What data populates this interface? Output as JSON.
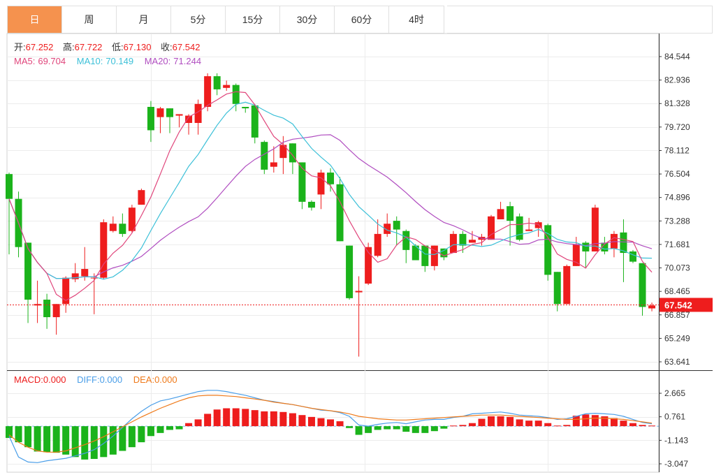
{
  "tabs": [
    {
      "label": "日",
      "active": true
    },
    {
      "label": "周",
      "active": false
    },
    {
      "label": "月",
      "active": false
    },
    {
      "label": "5分",
      "active": false
    },
    {
      "label": "15分",
      "active": false
    },
    {
      "label": "30分",
      "active": false
    },
    {
      "label": "60分",
      "active": false
    },
    {
      "label": "4时",
      "active": false
    }
  ],
  "info": {
    "open_label": "开:",
    "open": "67.252",
    "high_label": "高:",
    "high": "67.722",
    "low_label": "低:",
    "low": "67.130",
    "close_label": "收:",
    "close": "67.542",
    "ma5_label": "MA5:",
    "ma5": "69.704",
    "ma10_label": "MA10:",
    "ma10": "70.149",
    "ma20_label": "MA20:",
    "ma20": "71.244"
  },
  "macd_info": {
    "macd_label": "MACD:",
    "macd": "0.000",
    "diff_label": "DIFF:",
    "diff": "0.000",
    "dea_label": "DEA:",
    "dea": "0.000"
  },
  "colors": {
    "up": "#ee1d1d",
    "down": "#1bb31b",
    "ma5": "#e0457b",
    "ma10": "#3cc0d8",
    "ma20": "#b04dc0",
    "diff": "#4a9ee8",
    "dea": "#ef7a1a",
    "grid": "#ececec",
    "price_line": "#ee1d1d"
  },
  "chart_data": {
    "type": "candlestick",
    "price_axis": {
      "ticks": [
        "84.544",
        "82.936",
        "81.328",
        "79.720",
        "78.112",
        "76.504",
        "74.896",
        "73.288",
        "71.681",
        "70.073",
        "68.465",
        "66.857",
        "65.249",
        "63.641"
      ],
      "current": "67.542"
    },
    "macd_axis": {
      "ticks": [
        "2.665",
        "0.761",
        "-1.143",
        "-3.047"
      ]
    },
    "candles": [
      [
        76.5,
        74.8,
        76.6,
        71.0
      ],
      [
        74.8,
        71.5,
        75.3,
        70.8
      ],
      [
        71.8,
        67.9,
        71.8,
        66.3
      ],
      [
        67.5,
        67.6,
        69.2,
        66.3
      ],
      [
        67.9,
        66.7,
        68.3,
        65.9
      ],
      [
        66.7,
        67.6,
        67.6,
        65.5
      ],
      [
        67.6,
        69.4,
        69.5,
        67.0
      ],
      [
        69.3,
        69.7,
        70.4,
        69.1
      ],
      [
        69.5,
        70.0,
        71.5,
        69.2
      ],
      [
        69.4,
        69.4,
        69.7,
        66.9
      ],
      [
        69.4,
        73.2,
        73.4,
        69.3
      ],
      [
        72.6,
        73.1,
        73.6,
        72.5
      ],
      [
        73.1,
        72.4,
        73.8,
        72.2
      ],
      [
        72.6,
        74.2,
        74.4,
        72.5
      ],
      [
        74.4,
        75.4,
        75.5,
        74.4
      ],
      [
        81.1,
        79.5,
        81.5,
        78.7
      ],
      [
        80.4,
        81.0,
        81.1,
        79.3
      ],
      [
        81.0,
        80.4,
        81.0,
        79.3
      ],
      [
        80.5,
        80.6,
        80.6,
        79.7
      ],
      [
        80.0,
        80.5,
        80.6,
        79.2
      ],
      [
        80.0,
        81.3,
        81.6,
        79.2
      ],
      [
        81.1,
        83.2,
        83.4,
        80.8
      ],
      [
        83.2,
        82.3,
        83.4,
        81.9
      ],
      [
        82.4,
        82.6,
        82.9,
        82.2
      ],
      [
        82.6,
        81.3,
        82.7,
        80.8
      ],
      [
        81.1,
        81.0,
        81.1,
        80.7
      ],
      [
        81.2,
        79.0,
        81.3,
        78.6
      ],
      [
        78.7,
        76.8,
        78.8,
        76.5
      ],
      [
        77.0,
        77.3,
        78.4,
        76.6
      ],
      [
        77.6,
        78.5,
        79.1,
        76.5
      ],
      [
        78.6,
        77.3,
        78.6,
        76.5
      ],
      [
        77.3,
        74.6,
        77.3,
        74.1
      ],
      [
        74.6,
        74.2,
        74.7,
        74.0
      ],
      [
        75.1,
        76.6,
        76.8,
        74.1
      ],
      [
        76.6,
        75.8,
        76.9,
        75.3
      ],
      [
        75.8,
        71.9,
        76.3,
        71.9
      ],
      [
        71.6,
        68.0,
        71.6,
        67.9
      ],
      [
        68.4,
        68.5,
        69.5,
        64.0
      ],
      [
        69.0,
        71.5,
        71.8,
        68.9
      ],
      [
        70.9,
        72.4,
        73.4,
        70.8
      ],
      [
        72.4,
        73.1,
        73.8,
        72.2
      ],
      [
        73.3,
        72.7,
        73.6,
        71.6
      ],
      [
        72.6,
        71.3,
        72.7,
        70.4
      ],
      [
        71.6,
        70.6,
        71.7,
        70.6
      ],
      [
        71.6,
        70.2,
        71.6,
        69.8
      ],
      [
        70.2,
        71.6,
        71.6,
        69.9
      ],
      [
        71.4,
        70.8,
        71.4,
        70.6
      ],
      [
        71.1,
        72.4,
        72.6,
        71.1
      ],
      [
        72.4,
        71.6,
        72.6,
        71.1
      ],
      [
        71.8,
        72.0,
        72.6,
        71.8
      ],
      [
        72.0,
        72.2,
        72.4,
        71.6
      ],
      [
        72.0,
        73.6,
        73.7,
        72.0
      ],
      [
        73.4,
        74.1,
        74.6,
        73.4
      ],
      [
        74.3,
        73.3,
        74.6,
        71.6
      ],
      [
        73.6,
        72.0,
        73.8,
        71.9
      ],
      [
        72.6,
        72.7,
        73.5,
        72.6
      ],
      [
        72.8,
        73.2,
        73.3,
        72.2
      ],
      [
        73.0,
        69.6,
        73.1,
        69.2
      ],
      [
        69.8,
        67.6,
        69.8,
        67.1
      ],
      [
        67.6,
        70.2,
        70.3,
        67.6
      ],
      [
        70.2,
        71.7,
        72.2,
        70.2
      ],
      [
        71.8,
        71.2,
        71.9,
        70.1
      ],
      [
        71.2,
        74.2,
        74.4,
        71.2
      ],
      [
        71.8,
        71.2,
        72.2,
        71.0
      ],
      [
        71.4,
        72.4,
        72.6,
        70.8
      ],
      [
        72.5,
        71.1,
        73.4,
        69.1
      ],
      [
        71.2,
        70.5,
        71.3,
        70.4
      ],
      [
        70.4,
        67.4,
        70.4,
        66.8
      ],
      [
        67.3,
        67.5,
        67.7,
        67.1
      ]
    ],
    "macd_hist": [
      -0.95,
      -1.3,
      -1.7,
      -2.05,
      -2.1,
      -2.15,
      -2.3,
      -2.5,
      -2.7,
      -2.65,
      -2.5,
      -2.3,
      -2.0,
      -1.7,
      -1.3,
      -0.8,
      -0.55,
      -0.3,
      -0.25,
      0.25,
      0.55,
      1.0,
      1.35,
      1.45,
      1.45,
      1.4,
      1.3,
      1.2,
      1.2,
      1.15,
      1.05,
      0.9,
      0.75,
      0.65,
      0.55,
      0.4,
      -0.15,
      -0.7,
      -0.55,
      -0.3,
      -0.25,
      -0.25,
      -0.45,
      -0.55,
      -0.55,
      -0.4,
      -0.2,
      0.05,
      0.1,
      0.25,
      0.6,
      0.8,
      0.8,
      0.75,
      0.55,
      0.45,
      0.45,
      0.25,
      0.05,
      0.1,
      0.85,
      0.95,
      0.9,
      0.8,
      0.65,
      0.45,
      0.25,
      0.1,
      0.05
    ],
    "diff_line": [
      -0.8,
      -2.5,
      -2.9,
      -2.95,
      -2.8,
      -2.7,
      -2.6,
      -2.4,
      -2.2,
      -1.9,
      -1.4,
      -0.8,
      -0.1,
      0.6,
      1.2,
      1.7,
      2.05,
      2.2,
      2.4,
      2.6,
      2.8,
      2.9,
      2.9,
      2.8,
      2.65,
      2.5,
      2.3,
      2.1,
      2.0,
      1.85,
      1.75,
      1.6,
      1.45,
      1.3,
      1.25,
      1.1,
      0.8,
      0.1,
      0.0,
      0.15,
      0.25,
      0.3,
      0.2,
      0.35,
      0.5,
      0.55,
      0.55,
      0.7,
      0.8,
      1.0,
      1.05,
      1.1,
      1.15,
      1.05,
      0.9,
      0.85,
      0.8,
      0.7,
      0.55,
      0.6,
      0.8,
      1.0,
      1.05,
      1.0,
      0.95,
      0.8,
      0.55,
      0.3,
      0.2
    ],
    "dea_line": [
      -0.7,
      -1.3,
      -1.7,
      -2.0,
      -2.1,
      -2.1,
      -2.0,
      -1.75,
      -1.5,
      -1.2,
      -0.85,
      -0.45,
      -0.05,
      0.35,
      0.75,
      1.1,
      1.45,
      1.75,
      2.05,
      2.3,
      2.45,
      2.5,
      2.5,
      2.45,
      2.4,
      2.3,
      2.2,
      2.1,
      1.95,
      1.85,
      1.75,
      1.6,
      1.45,
      1.35,
      1.25,
      1.15,
      1.0,
      0.8,
      0.7,
      0.6,
      0.55,
      0.5,
      0.5,
      0.55,
      0.6,
      0.65,
      0.7,
      0.75,
      0.8,
      0.85,
      0.9,
      0.9,
      0.9,
      0.85,
      0.8,
      0.75,
      0.7,
      0.65,
      0.6,
      0.55,
      0.55,
      0.6,
      0.65,
      0.65,
      0.6,
      0.55,
      0.45,
      0.35,
      0.25
    ]
  }
}
